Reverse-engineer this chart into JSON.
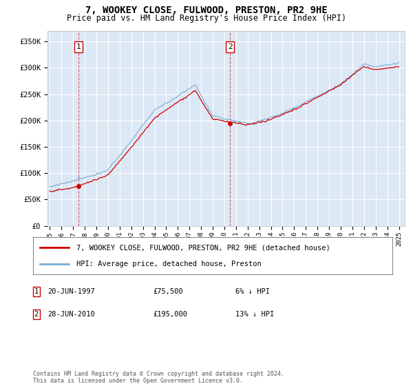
{
  "title": "7, WOOKEY CLOSE, FULWOOD, PRESTON, PR2 9HE",
  "subtitle": "Price paid vs. HM Land Registry's House Price Index (HPI)",
  "ylabel_ticks": [
    "£0",
    "£50K",
    "£100K",
    "£150K",
    "£200K",
    "£250K",
    "£300K",
    "£350K"
  ],
  "ytick_values": [
    0,
    50000,
    100000,
    150000,
    200000,
    250000,
    300000,
    350000
  ],
  "ylim": [
    0,
    370000
  ],
  "xlim_start": 1994.8,
  "xlim_end": 2025.5,
  "xticks": [
    1995,
    1996,
    1997,
    1998,
    1999,
    2000,
    2001,
    2002,
    2003,
    2004,
    2005,
    2006,
    2007,
    2008,
    2009,
    2010,
    2011,
    2012,
    2013,
    2014,
    2015,
    2016,
    2017,
    2018,
    2019,
    2020,
    2021,
    2022,
    2023,
    2024,
    2025
  ],
  "sale1_year": 1997.47,
  "sale1_price": 75500,
  "sale1_label": "1",
  "sale2_year": 2010.49,
  "sale2_price": 195000,
  "sale2_label": "2",
  "property_color": "#cc0000",
  "hpi_color": "#7aadd4",
  "background_color": "#dde8f5",
  "plot_bg": "#dde8f5",
  "legend_line1": "7, WOOKEY CLOSE, FULWOOD, PRESTON, PR2 9HE (detached house)",
  "legend_line2": "HPI: Average price, detached house, Preston",
  "table_row1": [
    "1",
    "20-JUN-1997",
    "£75,500",
    "6% ↓ HPI"
  ],
  "table_row2": [
    "2",
    "28-JUN-2010",
    "£195,000",
    "13% ↓ HPI"
  ],
  "footnote": "Contains HM Land Registry data © Crown copyright and database right 2024.\nThis data is licensed under the Open Government Licence v3.0.",
  "title_fontsize": 10,
  "subtitle_fontsize": 8.5
}
